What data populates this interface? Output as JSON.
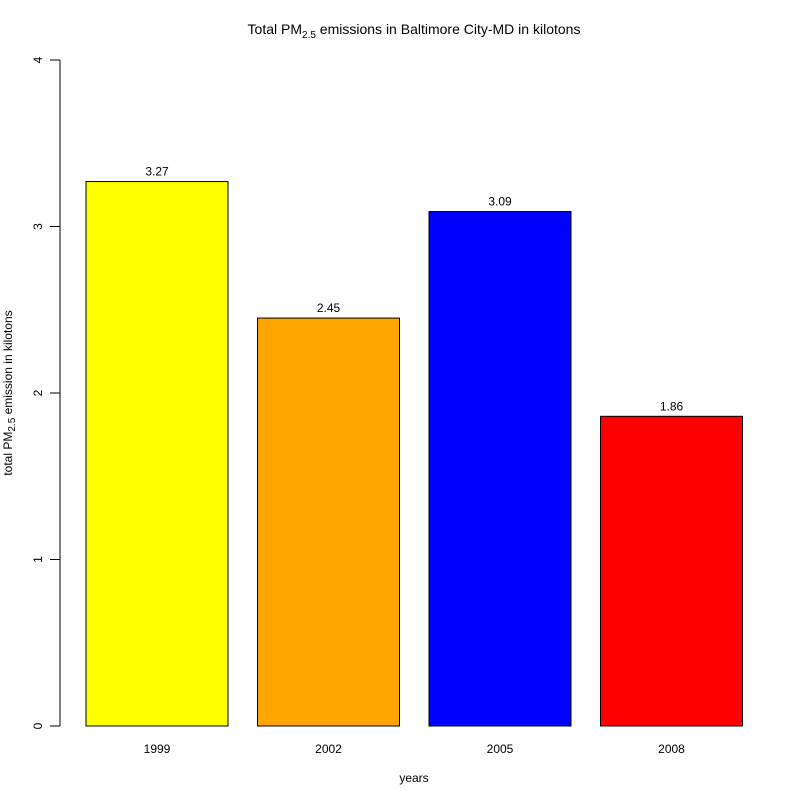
{
  "chart_data": {
    "type": "bar",
    "title": {
      "prefix": "Total PM",
      "subscript": "2.5",
      "suffix": " emissions in Baltimore City-MD in kilotons"
    },
    "xlabel": "years",
    "ylabel": {
      "prefix": "total PM",
      "subscript": "2.5",
      "suffix": " emission in kilotons"
    },
    "categories": [
      "1999",
      "2002",
      "2005",
      "2008"
    ],
    "values": [
      3.27,
      2.45,
      3.09,
      1.86
    ],
    "value_labels": [
      "3.27",
      "2.45",
      "3.09",
      "1.86"
    ],
    "colors": [
      "#ffff00",
      "#ffa500",
      "#0000ff",
      "#ff0000"
    ],
    "ylim": [
      0,
      4
    ],
    "yticks": [
      "0",
      "1",
      "2",
      "3",
      "4"
    ],
    "grid": false,
    "legend": "none"
  }
}
